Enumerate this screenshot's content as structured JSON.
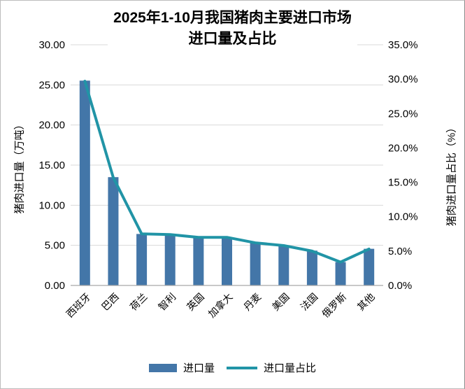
{
  "title": {
    "line1": "2025年1-10月我国猪肉主要进口市场",
    "line2": "进口量及占比"
  },
  "left_axis": {
    "title": "猪肉进口量（万吨）",
    "ticks": [
      "0.00",
      "5.00",
      "10.00",
      "15.00",
      "20.00",
      "25.00",
      "30.00"
    ]
  },
  "right_axis": {
    "title": "猪肉进口量占比（%）",
    "ticks": [
      "0.0%",
      "5.0%",
      "10.0%",
      "15.0%",
      "20.0%",
      "25.0%",
      "30.0%",
      "35.0%"
    ]
  },
  "legend": {
    "bar_label": "进口量",
    "line_label": "进口量占比"
  },
  "colors": {
    "bar": "#4376a8",
    "line": "#2194a6",
    "grid": "#d9d9d9",
    "axis_line": "#a6a6a6",
    "text": "#000000"
  },
  "chart_data": {
    "type": "bar+line combo (dual axis)",
    "title": "2025年1-10月我国猪肉主要进口市场进口量及占比",
    "categories": [
      "西班牙",
      "巴西",
      "荷兰",
      "智利",
      "英国",
      "加拿大",
      "丹麦",
      "美国",
      "法国",
      "俄罗斯",
      "其他"
    ],
    "series": [
      {
        "name": "进口量",
        "type": "bar",
        "axis": "left",
        "unit": "万吨",
        "values": [
          25.53,
          13.5,
          6.42,
          6.38,
          6.02,
          6.0,
          5.37,
          4.99,
          4.34,
          2.91,
          4.57
        ]
      },
      {
        "name": "进口量占比",
        "type": "line",
        "axis": "right",
        "unit": "%",
        "values": [
          29.7,
          15.7,
          7.5,
          7.4,
          7.0,
          7.0,
          6.2,
          5.8,
          5.0,
          3.4,
          5.3
        ]
      }
    ],
    "ylabel_left": "猪肉进口量（万吨）",
    "ylabel_right": "猪肉进口量占比（%）",
    "ylim_left": [
      0,
      30
    ],
    "ylim_right": [
      0,
      35
    ],
    "left_tick_step": 5,
    "right_tick_step": 5,
    "grid": true,
    "legend_position": "bottom"
  }
}
